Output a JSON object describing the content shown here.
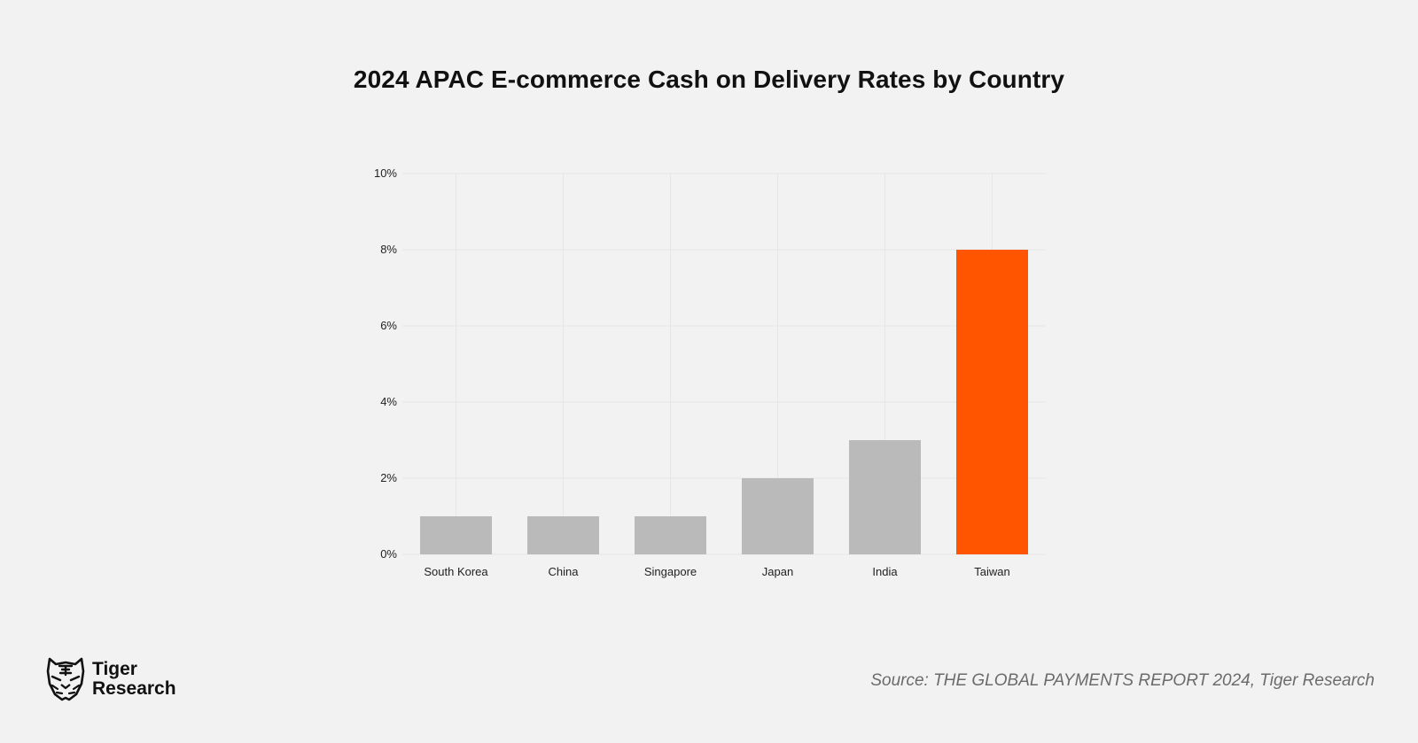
{
  "brand": {
    "line1": "Tiger",
    "line2": "Research"
  },
  "source": "Source: THE GLOBAL PAYMENTS REPORT 2024, Tiger Research",
  "colors": {
    "background": "#f2f2f2",
    "bar_default": "#bababa",
    "bar_highlight": "#ff5500",
    "grid": "#e6e6e6"
  },
  "chart_data": {
    "type": "bar",
    "title": "2024 APAC E-commerce Cash on Delivery Rates by Country",
    "xlabel": "",
    "ylabel": "",
    "categories": [
      "South Korea",
      "China",
      "Singapore",
      "Japan",
      "India",
      "Taiwan"
    ],
    "values": [
      1,
      1,
      1,
      2,
      3,
      8
    ],
    "unit": "%",
    "ylim": [
      0,
      10
    ],
    "yticks": [
      0,
      2,
      4,
      6,
      8,
      10
    ],
    "ytick_labels": [
      "0%",
      "2%",
      "4%",
      "6%",
      "8%",
      "10%"
    ],
    "highlight": "Taiwan",
    "grid": true,
    "legend": "none"
  }
}
